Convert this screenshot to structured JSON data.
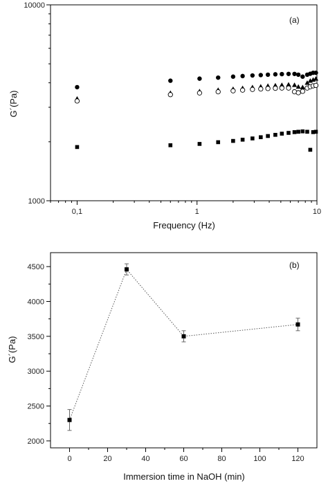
{
  "chart_data": [
    {
      "type": "scatter",
      "panel_label": "(a)",
      "xlabel": "Frequency (Hz)",
      "ylabel": "G´(Pa)",
      "x_scale": "log",
      "y_scale": "log",
      "xlim": [
        0.06,
        10
      ],
      "ylim": [
        1000,
        10000
      ],
      "x_tick_labels": [
        {
          "value": 0.1,
          "label": "0,1"
        },
        {
          "value": 1,
          "label": "1"
        },
        {
          "value": 10,
          "label": "10"
        }
      ],
      "y_tick_labels": [
        {
          "value": 1000,
          "label": "1000"
        },
        {
          "value": 10000,
          "label": "10000"
        }
      ],
      "series": [
        {
          "marker": "filled-circle",
          "points": [
            [
              0.1,
              3800
            ],
            [
              0.6,
              4100
            ],
            [
              1.05,
              4200
            ],
            [
              1.5,
              4250
            ],
            [
              2.0,
              4300
            ],
            [
              2.4,
              4330
            ],
            [
              2.9,
              4360
            ],
            [
              3.4,
              4380
            ],
            [
              3.9,
              4400
            ],
            [
              4.5,
              4420
            ],
            [
              5.1,
              4430
            ],
            [
              5.8,
              4440
            ],
            [
              6.5,
              4440
            ],
            [
              7.0,
              4400
            ],
            [
              7.6,
              4300
            ],
            [
              8.3,
              4400
            ],
            [
              8.8,
              4450
            ],
            [
              9.3,
              4500
            ],
            [
              9.8,
              4500
            ]
          ]
        },
        {
          "marker": "filled-triangle",
          "points": [
            [
              0.1,
              3320
            ],
            [
              0.6,
              3550
            ],
            [
              1.05,
              3620
            ],
            [
              1.5,
              3680
            ],
            [
              2.0,
              3720
            ],
            [
              2.4,
              3760
            ],
            [
              2.9,
              3800
            ],
            [
              3.4,
              3830
            ],
            [
              3.9,
              3860
            ],
            [
              4.5,
              3880
            ],
            [
              5.1,
              3900
            ],
            [
              5.8,
              3920
            ],
            [
              6.5,
              3900
            ],
            [
              7.0,
              3820
            ],
            [
              7.6,
              3800
            ],
            [
              8.3,
              4000
            ],
            [
              8.8,
              4100
            ],
            [
              9.3,
              4150
            ],
            [
              9.8,
              4200
            ]
          ]
        },
        {
          "marker": "open-circle",
          "points": [
            [
              0.1,
              3230
            ],
            [
              0.6,
              3480
            ],
            [
              1.05,
              3550
            ],
            [
              1.5,
              3600
            ],
            [
              2.0,
              3640
            ],
            [
              2.4,
              3670
            ],
            [
              2.9,
              3700
            ],
            [
              3.4,
              3720
            ],
            [
              3.9,
              3740
            ],
            [
              4.5,
              3750
            ],
            [
              5.1,
              3760
            ],
            [
              5.8,
              3760
            ],
            [
              6.5,
              3600
            ],
            [
              7.0,
              3560
            ],
            [
              7.6,
              3620
            ],
            [
              8.3,
              3760
            ],
            [
              8.8,
              3820
            ],
            [
              9.3,
              3860
            ],
            [
              9.8,
              3880
            ]
          ]
        },
        {
          "marker": "filled-square",
          "points": [
            [
              0.1,
              1880
            ],
            [
              0.6,
              1920
            ],
            [
              1.05,
              1950
            ],
            [
              1.5,
              1990
            ],
            [
              2.0,
              2020
            ],
            [
              2.4,
              2050
            ],
            [
              2.9,
              2080
            ],
            [
              3.4,
              2110
            ],
            [
              3.9,
              2140
            ],
            [
              4.5,
              2170
            ],
            [
              5.1,
              2200
            ],
            [
              5.8,
              2220
            ],
            [
              6.5,
              2240
            ],
            [
              7.0,
              2250
            ],
            [
              7.6,
              2260
            ],
            [
              8.3,
              2250
            ],
            [
              8.8,
              1820
            ],
            [
              9.3,
              2240
            ],
            [
              9.8,
              2250
            ]
          ]
        }
      ]
    },
    {
      "type": "line",
      "panel_label": "(b)",
      "xlabel": "Immersion time in NaOH (min)",
      "ylabel": "G´(Pa)",
      "xlim": [
        -10,
        130
      ],
      "ylim": [
        1900,
        4700
      ],
      "x_ticks": [
        0,
        20,
        40,
        60,
        80,
        100,
        120
      ],
      "y_ticks": [
        2000,
        2500,
        3000,
        3500,
        4000,
        4500
      ],
      "line_style": "dotted",
      "marker": "filled-square",
      "x": [
        0,
        30,
        60,
        120
      ],
      "y": [
        2300,
        4460,
        3500,
        3670
      ],
      "error": [
        150,
        80,
        80,
        90
      ]
    }
  ]
}
